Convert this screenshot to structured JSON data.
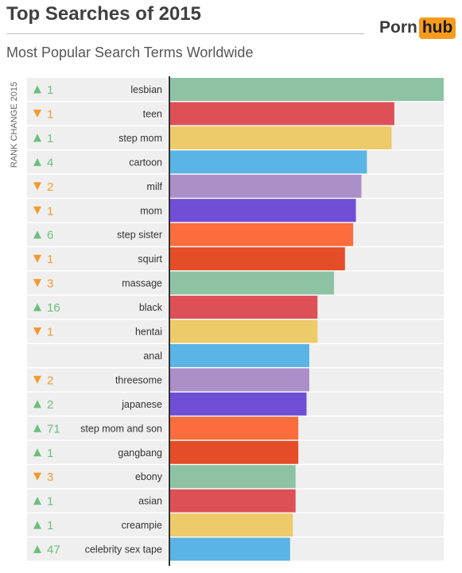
{
  "header": {
    "title": "Top Searches of 2015",
    "subtitle": "Most Popular Search Terms Worldwide",
    "logo_part1": "Porn",
    "logo_part2": "hub"
  },
  "colors": {
    "up": "#6dbf7e",
    "down": "#f39a2d",
    "row_bg": "#efefef",
    "axis": "#333333",
    "logo_accent": "#f79b1e"
  },
  "chart_data": {
    "type": "bar",
    "orientation": "horizontal",
    "title": "Top Searches of 2015",
    "subtitle": "Most Popular Search Terms Worldwide",
    "rank_change_label": "RANK CHANGE 2015",
    "categories": [
      "lesbian",
      "teen",
      "step mom",
      "cartoon",
      "milf",
      "mom",
      "step sister",
      "squirt",
      "massage",
      "black",
      "hentai",
      "anal",
      "threesome",
      "japanese",
      "step mom and son",
      "gangbang",
      "ebony",
      "asian",
      "creampie",
      "celebrity sex tape"
    ],
    "values": [
      100,
      82,
      81,
      72,
      70,
      68,
      67,
      64,
      60,
      54,
      54,
      51,
      51,
      50,
      47,
      47,
      46,
      46,
      45,
      44
    ],
    "value_scale": "relative to top search (100)",
    "rank_change": [
      {
        "dir": "up",
        "value": "1"
      },
      {
        "dir": "down",
        "value": "1"
      },
      {
        "dir": "up",
        "value": "1"
      },
      {
        "dir": "up",
        "value": "4"
      },
      {
        "dir": "down",
        "value": "2"
      },
      {
        "dir": "down",
        "value": "1"
      },
      {
        "dir": "up",
        "value": "6"
      },
      {
        "dir": "down",
        "value": "1"
      },
      {
        "dir": "down",
        "value": "3"
      },
      {
        "dir": "up",
        "value": "16"
      },
      {
        "dir": "down",
        "value": "1"
      },
      {
        "dir": "none",
        "value": ""
      },
      {
        "dir": "down",
        "value": "2"
      },
      {
        "dir": "up",
        "value": "2"
      },
      {
        "dir": "up",
        "value": "71"
      },
      {
        "dir": "up",
        "value": "1"
      },
      {
        "dir": "down",
        "value": "3"
      },
      {
        "dir": "up",
        "value": "1"
      },
      {
        "dir": "up",
        "value": "1"
      },
      {
        "dir": "up",
        "value": "47"
      }
    ],
    "bar_colors": [
      "#8dc3a3",
      "#dd5058",
      "#edca6a",
      "#5ab4e5",
      "#ab8fc9",
      "#6f4fd6",
      "#fb6d3d",
      "#e44d27"
    ],
    "xlim": [
      0,
      100
    ],
    "grid": false,
    "legend": "none"
  }
}
